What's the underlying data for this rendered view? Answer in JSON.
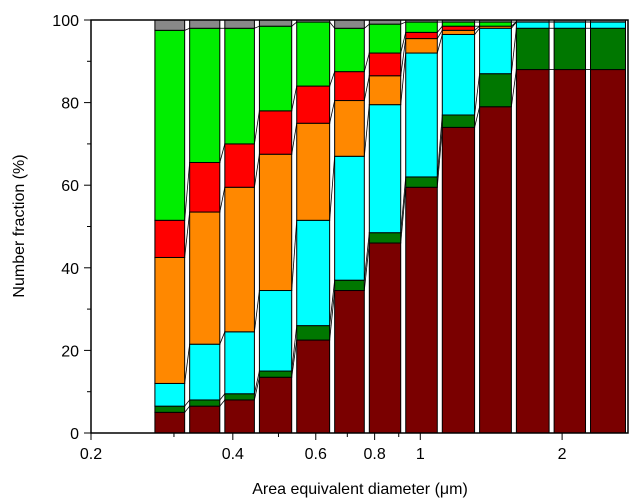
{
  "chart_data": {
    "type": "bar",
    "stacked": true,
    "xscale": "log",
    "xlim": [
      0.2,
      2.76
    ],
    "ylim": [
      0,
      100
    ],
    "xlabel": "Area equivalent diameter (μm)",
    "ylabel": "Number fraction (%)",
    "xticks": [
      0.2,
      0.4,
      0.6,
      0.8,
      1,
      2
    ],
    "xtick_labels": [
      "0.2",
      "0.4",
      "0.6",
      "0.8",
      "1",
      "2"
    ],
    "yticks": [
      0,
      20,
      40,
      60,
      80,
      100
    ],
    "ytick_labels": [
      "0",
      "20",
      "40",
      "60",
      "80",
      "100"
    ],
    "grid": false,
    "bins": [
      {
        "x0": 0.27,
        "x1": 0.32
      },
      {
        "x0": 0.32,
        "x1": 0.38
      },
      {
        "x0": 0.38,
        "x1": 0.45
      },
      {
        "x0": 0.45,
        "x1": 0.54
      },
      {
        "x0": 0.54,
        "x1": 0.65
      },
      {
        "x0": 0.65,
        "x1": 0.77
      },
      {
        "x0": 0.77,
        "x1": 0.92
      },
      {
        "x0": 0.92,
        "x1": 1.1
      },
      {
        "x0": 1.1,
        "x1": 1.32
      },
      {
        "x0": 1.32,
        "x1": 1.58
      },
      {
        "x0": 1.58,
        "x1": 1.9
      },
      {
        "x0": 1.9,
        "x1": 2.27
      },
      {
        "x0": 2.27,
        "x1": 2.76
      }
    ],
    "series": [
      {
        "color": "#7a0000",
        "values": [
          5.0,
          6.5,
          8.0,
          13.5,
          22.5,
          34.5,
          46.0,
          59.5,
          74.0,
          79.0,
          88.0,
          88.0,
          88.0
        ]
      },
      {
        "color": "#007700",
        "values": [
          1.5,
          1.5,
          1.5,
          1.5,
          3.5,
          2.5,
          2.5,
          2.5,
          3.0,
          8.0,
          10.0,
          10.0,
          10.0
        ]
      },
      {
        "color": "#00ffff",
        "values": [
          5.5,
          13.5,
          15.0,
          19.5,
          25.5,
          30.0,
          31.0,
          30.0,
          19.5,
          11.0,
          1.5,
          1.5,
          1.5
        ]
      },
      {
        "color": "#ff8800",
        "values": [
          30.5,
          32.0,
          35.0,
          33.0,
          23.5,
          13.5,
          7.0,
          3.5,
          1.0,
          0.5,
          0.0,
          0.0,
          0.0
        ]
      },
      {
        "color": "#ff0000",
        "values": [
          9.0,
          12.0,
          10.5,
          10.5,
          9.0,
          7.0,
          5.5,
          1.5,
          1.0,
          0.0,
          0.0,
          0.0,
          0.0
        ]
      },
      {
        "color": "#00ee00",
        "values": [
          46.0,
          32.5,
          28.0,
          20.5,
          15.5,
          10.5,
          7.0,
          2.5,
          1.0,
          1.0,
          0.0,
          0.0,
          0.0
        ]
      },
      {
        "color": "#888888",
        "values": [
          2.5,
          2.0,
          2.0,
          1.5,
          0.5,
          2.0,
          1.0,
          0.5,
          0.5,
          0.5,
          0.5,
          0.5,
          0.5
        ]
      }
    ]
  }
}
